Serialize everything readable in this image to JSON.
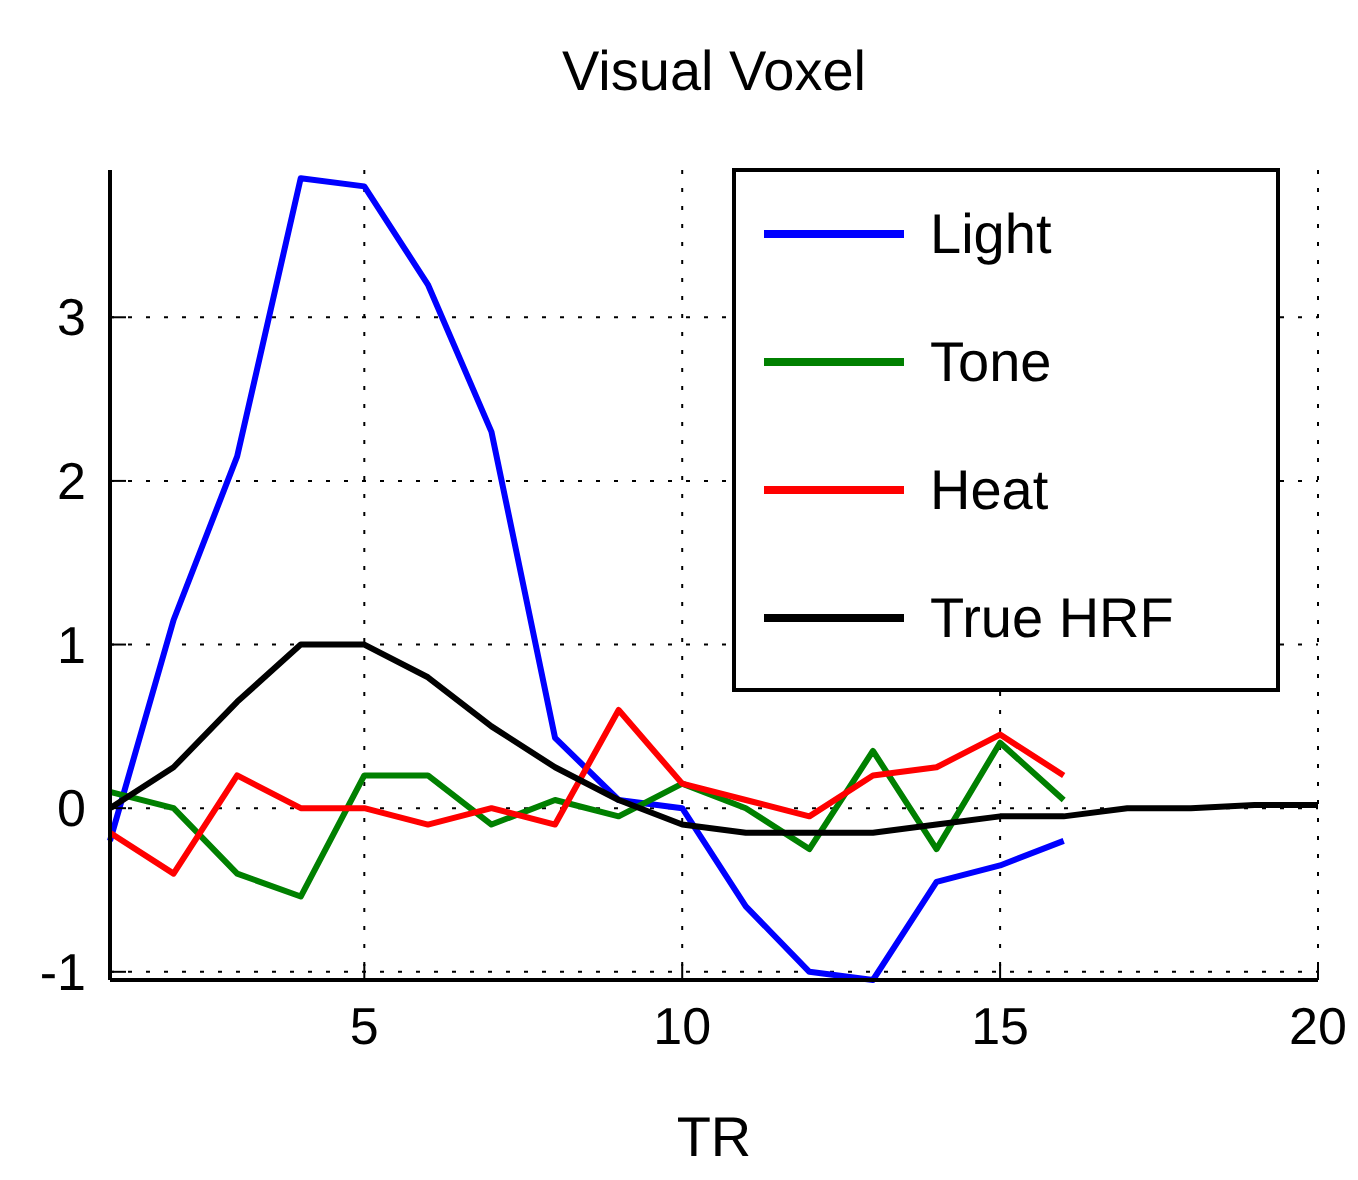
{
  "chart_data": {
    "type": "line",
    "title": "Visual Voxel",
    "xlabel": "TR",
    "xlim": [
      1,
      20
    ],
    "xticks": [
      5,
      10,
      15,
      20
    ],
    "ylim": [
      -1.05,
      3.9
    ],
    "yticks": [
      -1,
      0,
      1,
      2,
      3
    ],
    "grid": true,
    "legend": "top right",
    "line_style": "solid",
    "series": [
      {
        "name": "Light",
        "color": "#0000ff",
        "x": [
          1,
          2,
          3,
          4,
          5,
          6,
          7,
          8,
          9,
          10,
          11,
          12,
          13,
          14,
          15,
          16
        ],
        "values": [
          -0.2,
          1.15,
          2.15,
          3.85,
          3.8,
          3.2,
          2.3,
          0.43,
          0.05,
          0.0,
          -0.6,
          -1.0,
          -1.05,
          -0.45,
          -0.35,
          -0.2
        ]
      },
      {
        "name": "Tone",
        "color": "#008000",
        "x": [
          1,
          2,
          3,
          4,
          5,
          6,
          7,
          8,
          9,
          10,
          11,
          12,
          13,
          14,
          15,
          16
        ],
        "values": [
          0.1,
          0.0,
          -0.4,
          -0.54,
          0.2,
          0.2,
          -0.1,
          0.05,
          -0.05,
          0.15,
          0.0,
          -0.25,
          0.35,
          -0.25,
          0.4,
          0.05
        ]
      },
      {
        "name": "Heat",
        "color": "#ff0000",
        "x": [
          1,
          2,
          3,
          4,
          5,
          6,
          7,
          8,
          9,
          10,
          11,
          12,
          13,
          14,
          15,
          16
        ],
        "values": [
          -0.15,
          -0.4,
          0.2,
          0.0,
          0.0,
          -0.1,
          0.0,
          -0.1,
          0.6,
          0.15,
          0.05,
          -0.05,
          0.2,
          0.25,
          0.45,
          0.2
        ]
      },
      {
        "name": "True HRF",
        "color": "#000000",
        "x": [
          1,
          2,
          3,
          4,
          5,
          6,
          7,
          8,
          9,
          10,
          11,
          12,
          13,
          14,
          15,
          16,
          17,
          18,
          19,
          20
        ],
        "values": [
          0,
          0.25,
          0.65,
          1.0,
          1.0,
          0.8,
          0.5,
          0.25,
          0.05,
          -0.1,
          -0.15,
          -0.15,
          -0.15,
          -0.1,
          -0.05,
          -0.05,
          0,
          0,
          0.02,
          0.02
        ]
      }
    ]
  }
}
